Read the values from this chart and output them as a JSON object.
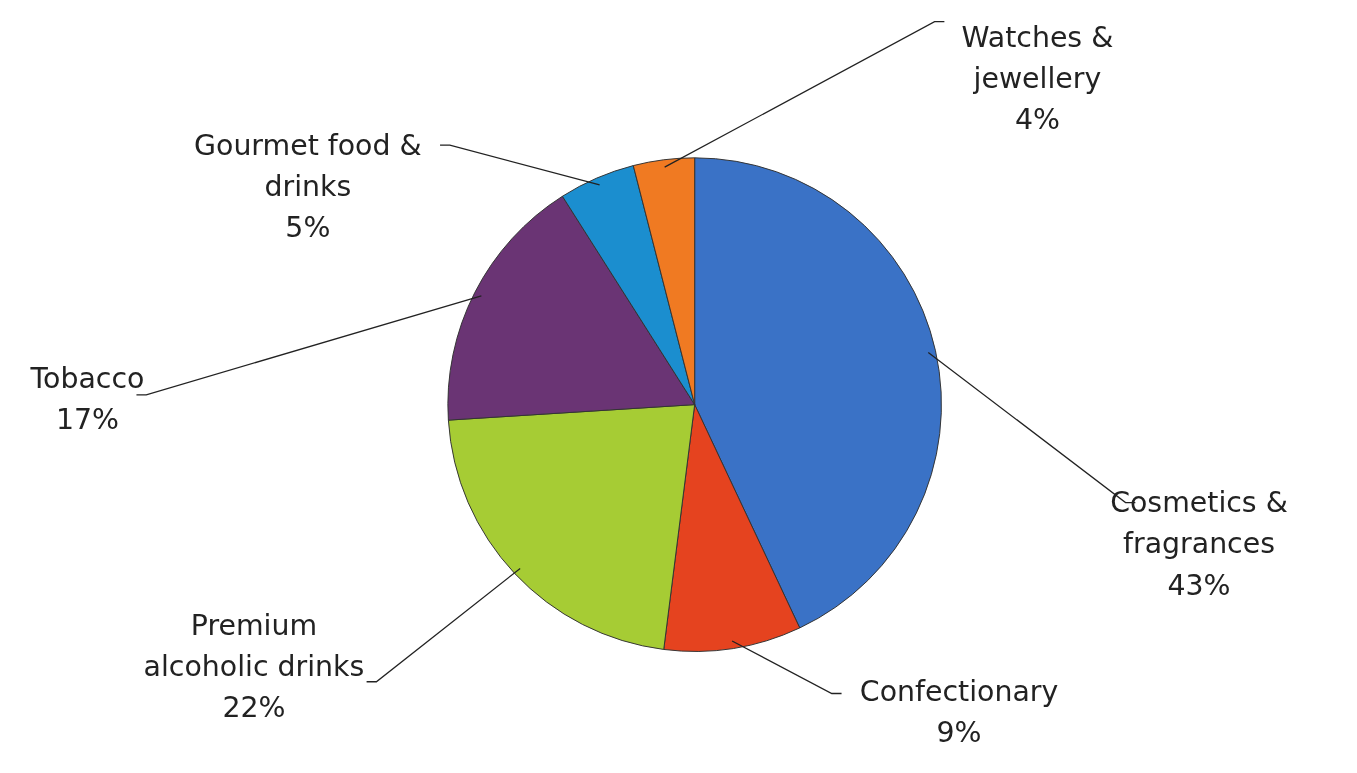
{
  "chart_data": {
    "type": "pie",
    "categories": [
      "Cosmetics & fragrances",
      "Confectionary",
      "Premium alcoholic drinks",
      "Tobacco",
      "Gourmet food & drinks",
      "Watches & jewellery"
    ],
    "values": [
      43,
      9,
      22,
      17,
      5,
      4
    ],
    "value_labels": [
      "43%",
      "9%",
      "22%",
      "17%",
      "5%",
      "4%"
    ],
    "colors": [
      "#3a72c6",
      "#e5431f",
      "#a6cc34",
      "#6a3474",
      "#1b8ecf",
      "#f07a22"
    ]
  }
}
